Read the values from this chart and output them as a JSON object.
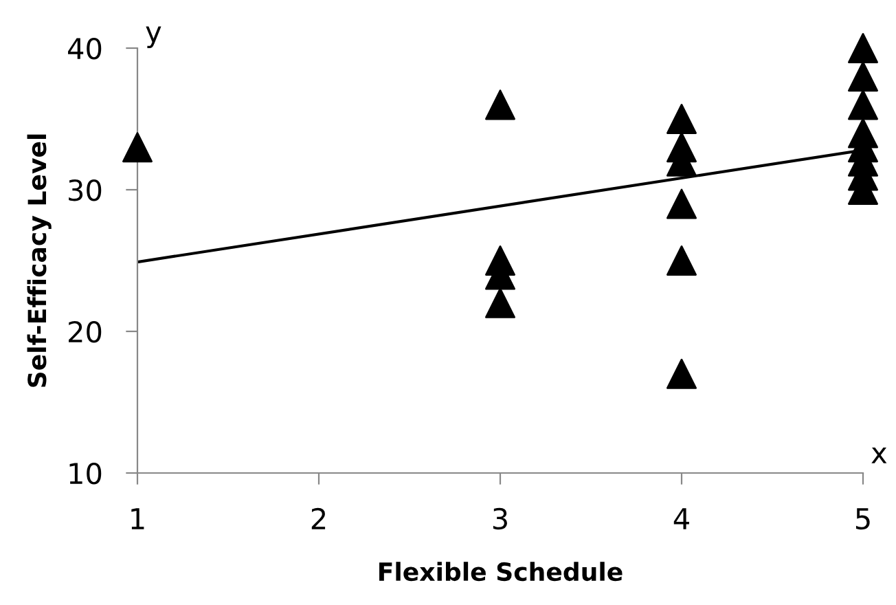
{
  "chart_data": {
    "type": "scatter",
    "xlabel": "Flexible Schedule",
    "ylabel": "Self-Efficacy Level",
    "annotations": [
      "y",
      "x"
    ],
    "series": [
      {
        "color": "#000000",
        "marker": "triangle",
        "x": [
          1,
          3,
          3,
          3,
          3,
          4,
          4,
          4,
          4,
          4,
          4,
          5,
          5,
          5,
          5,
          5,
          5,
          5,
          5
        ],
        "values": [
          33,
          36,
          25,
          24,
          22,
          35,
          33,
          32,
          29,
          25,
          17,
          40,
          38,
          36,
          34,
          33,
          32,
          31,
          30
        ]
      },
      {
        "type": "line",
        "color": "#000000",
        "marker": "none",
        "x": [
          1,
          5
        ],
        "values": [
          24.9,
          32.8
        ]
      }
    ],
    "xlim": [
      1,
      5
    ],
    "xticks": [
      1,
      2,
      3,
      4,
      5
    ],
    "ylim": [
      10,
      40
    ],
    "yticks": [
      10,
      20,
      30,
      40
    ],
    "grid": false,
    "legend": false
  }
}
